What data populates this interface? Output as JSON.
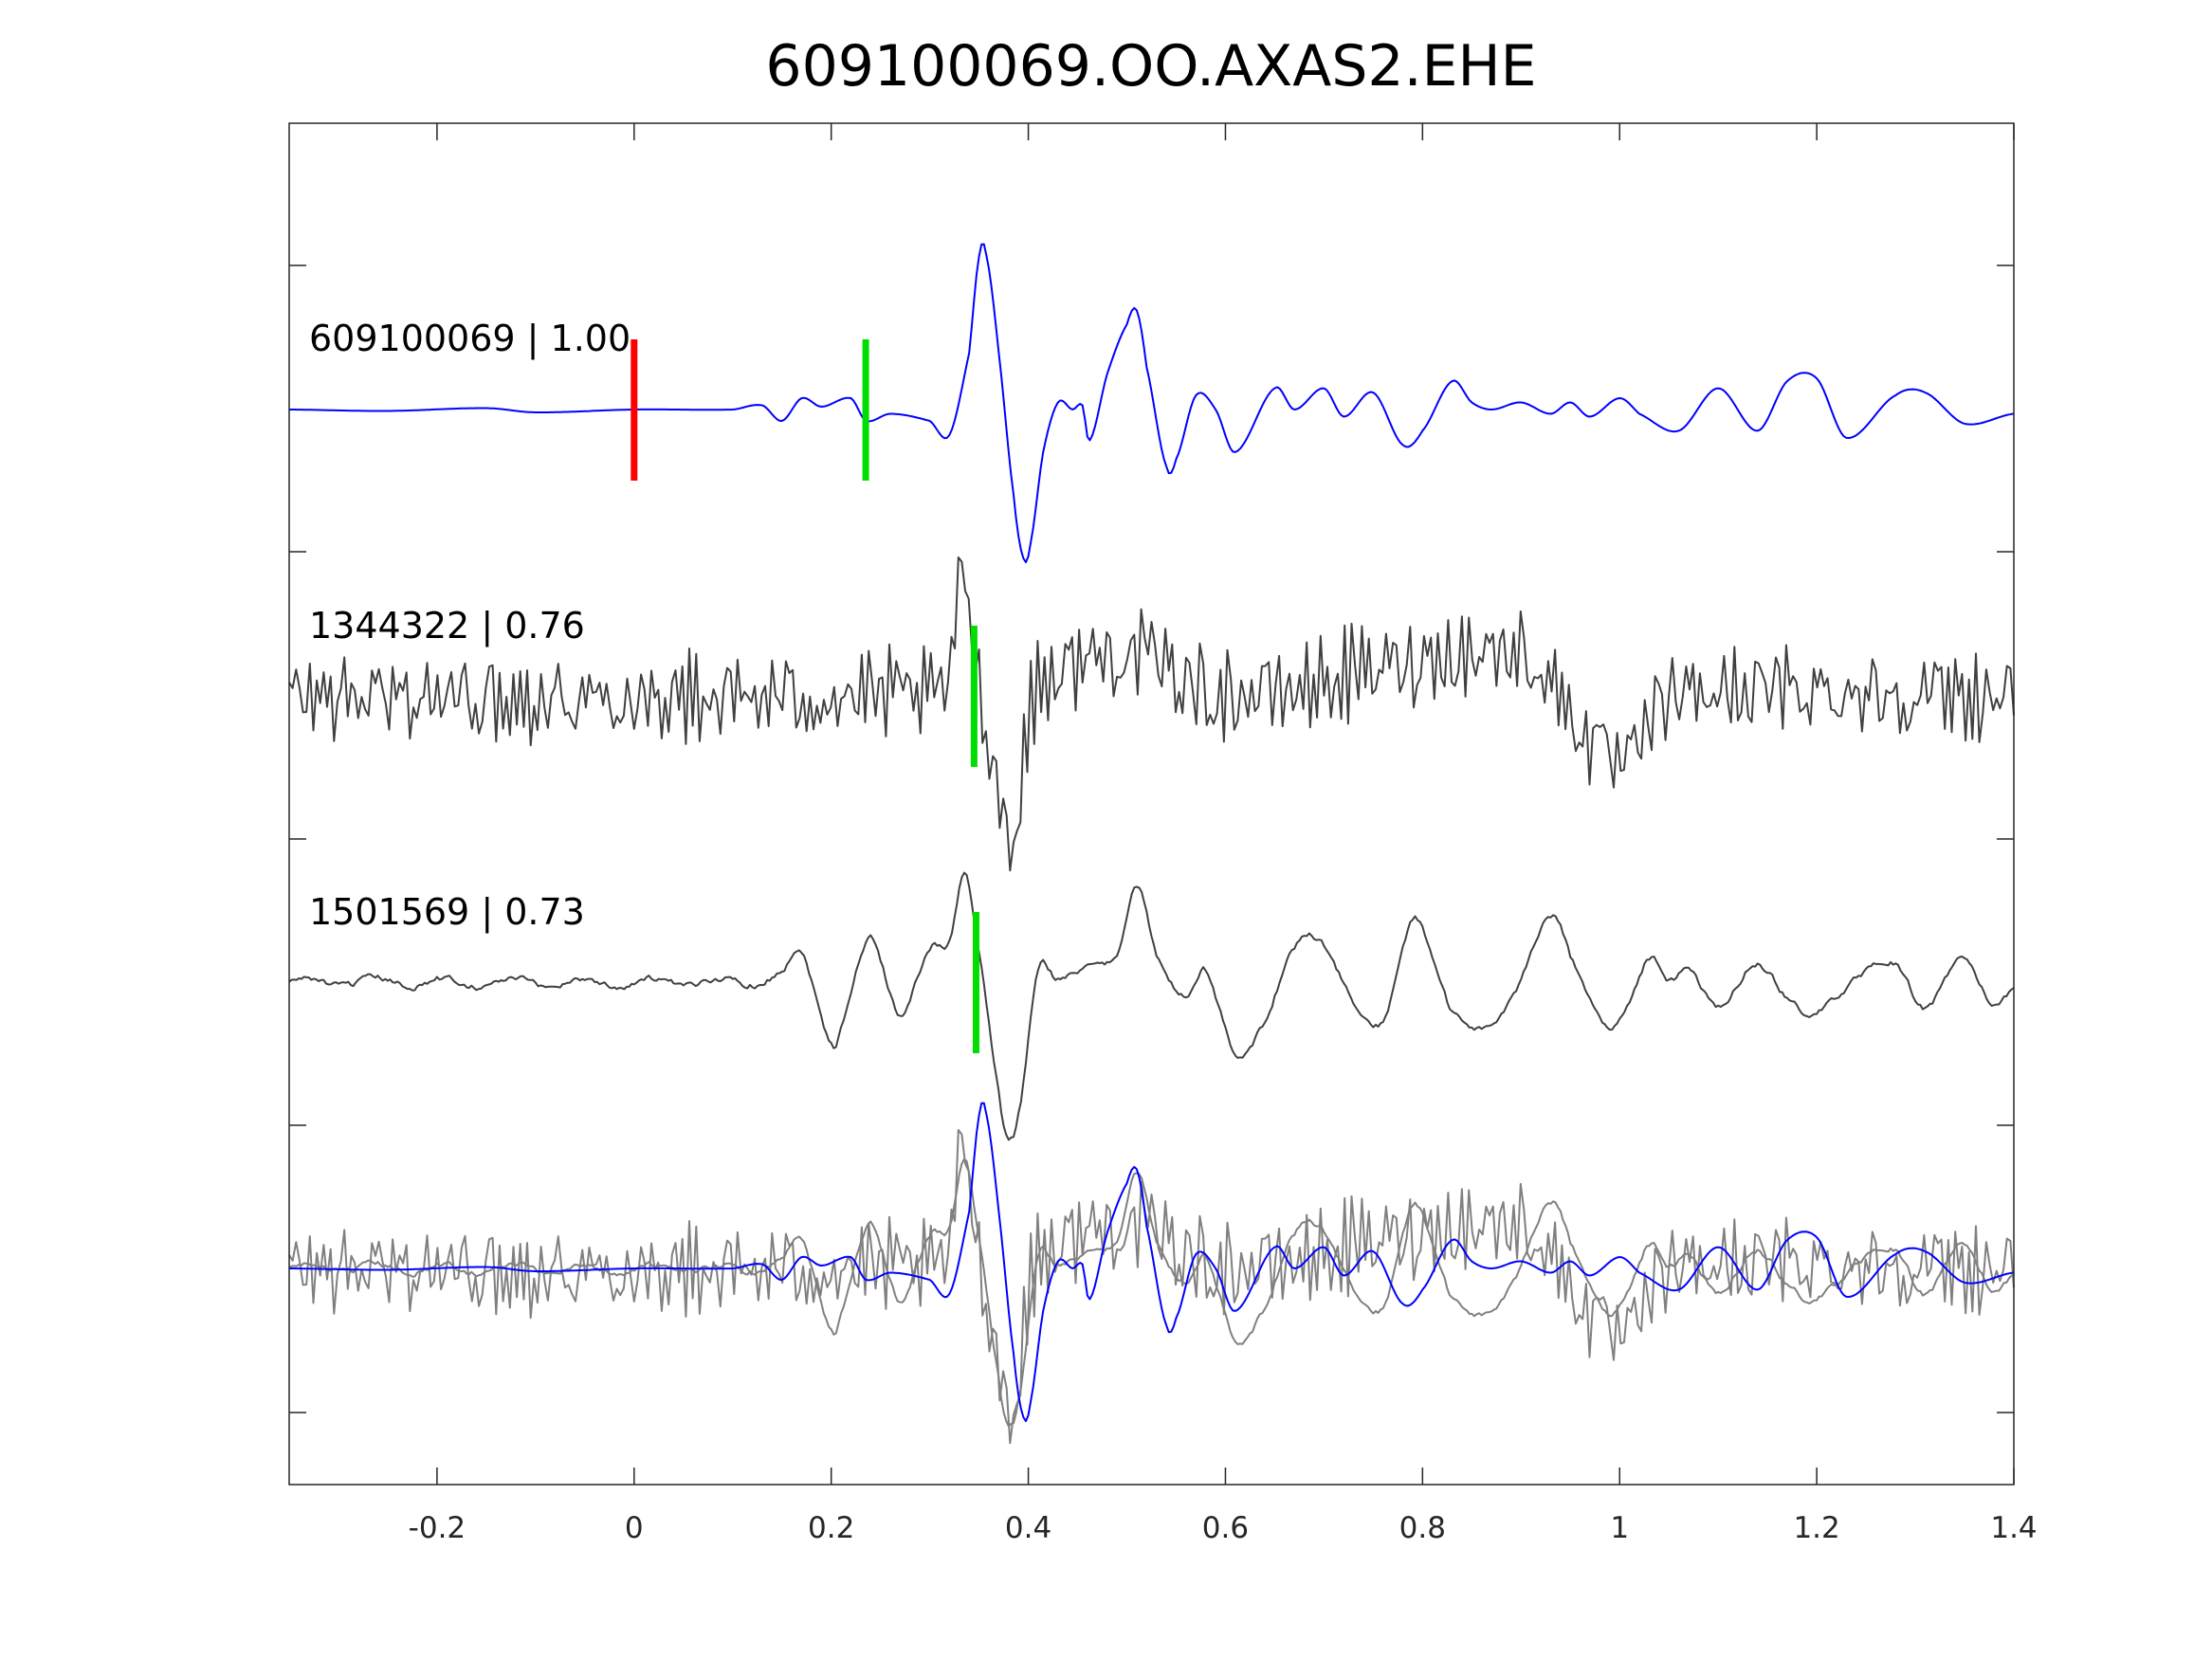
{
  "chart_data": {
    "type": "line",
    "title": "609100069.OO.AXAS2.EHE",
    "xlabel": "",
    "ylabel": "",
    "xlim": [
      -0.35,
      1.4
    ],
    "xticks": [
      -0.2,
      0,
      0.2,
      0.4,
      0.6,
      0.8,
      1,
      1.2,
      1.4
    ],
    "xtick_labels": [
      "-0.2",
      "0",
      "0.2",
      "0.4",
      "0.6",
      "0.8",
      "1",
      "1.2",
      "1.4"
    ],
    "grid": false,
    "colors": {
      "template": "#0000ff",
      "neighbor": "#404040",
      "overlay": "#808080",
      "pick_red": "#ff0000",
      "pick_green": "#00dd00"
    },
    "traces": [
      {
        "name": "609100069",
        "label": "609100069 | 1.00",
        "correlation": 1.0,
        "color": "#0000ff",
        "noise": 0,
        "picks": [
          {
            "t": 0.0,
            "color": "#ff0000"
          },
          {
            "t": 0.235,
            "color": "#00dd00"
          }
        ],
        "key_points": [
          [
            -0.35,
            0
          ],
          [
            -0.25,
            -1
          ],
          [
            -0.15,
            1
          ],
          [
            -0.1,
            -2
          ],
          [
            0,
            0
          ],
          [
            0.1,
            0
          ],
          [
            0.13,
            3
          ],
          [
            0.15,
            -8
          ],
          [
            0.17,
            8
          ],
          [
            0.19,
            2
          ],
          [
            0.22,
            8
          ],
          [
            0.235,
            -8
          ],
          [
            0.26,
            -3
          ],
          [
            0.3,
            -8
          ],
          [
            0.32,
            -18
          ],
          [
            0.34,
            40
          ],
          [
            0.35,
            108
          ],
          [
            0.357,
            110
          ],
          [
            0.37,
            40
          ],
          [
            0.385,
            -60
          ],
          [
            0.395,
            -105
          ],
          [
            0.402,
            -95
          ],
          [
            0.415,
            -30
          ],
          [
            0.43,
            5
          ],
          [
            0.445,
            0
          ],
          [
            0.455,
            3
          ],
          [
            0.462,
            -22
          ],
          [
            0.48,
            25
          ],
          [
            0.5,
            60
          ],
          [
            0.51,
            70
          ],
          [
            0.52,
            30
          ],
          [
            0.54,
            -40
          ],
          [
            0.55,
            -35
          ],
          [
            0.57,
            10
          ],
          [
            0.59,
            0
          ],
          [
            0.61,
            -30
          ],
          [
            0.65,
            15
          ],
          [
            0.67,
            0
          ],
          [
            0.7,
            15
          ],
          [
            0.72,
            -5
          ],
          [
            0.75,
            12
          ],
          [
            0.78,
            -25
          ],
          [
            0.8,
            -15
          ],
          [
            0.83,
            20
          ],
          [
            0.85,
            5
          ],
          [
            0.87,
            0
          ],
          [
            0.9,
            5
          ],
          [
            0.93,
            -3
          ],
          [
            0.95,
            5
          ],
          [
            0.97,
            -5
          ],
          [
            1.0,
            8
          ],
          [
            1.02,
            -3
          ],
          [
            1.06,
            -15
          ],
          [
            1.1,
            15
          ],
          [
            1.14,
            -15
          ],
          [
            1.17,
            20
          ],
          [
            1.2,
            22
          ],
          [
            1.23,
            -20
          ],
          [
            1.28,
            10
          ],
          [
            1.31,
            12
          ],
          [
            1.35,
            -10
          ],
          [
            1.4,
            -3
          ]
        ]
      },
      {
        "name": "1344322",
        "label": "1344322 | 0.76",
        "correlation": 0.76,
        "color": "#404040",
        "noise": 32,
        "picks": [
          {
            "t": 0.345,
            "color": "#00dd00"
          }
        ],
        "key_points": [
          [
            -0.35,
            0
          ],
          [
            0.3,
            0
          ],
          [
            0.32,
            15
          ],
          [
            0.335,
            90
          ],
          [
            0.345,
            30
          ],
          [
            0.36,
            -30
          ],
          [
            0.375,
            -80
          ],
          [
            0.385,
            -110
          ],
          [
            0.395,
            -40
          ],
          [
            0.41,
            10
          ],
          [
            0.5,
            30
          ],
          [
            0.6,
            0
          ],
          [
            0.9,
            30
          ],
          [
            1.0,
            -50
          ],
          [
            1.05,
            0
          ],
          [
            1.4,
            0
          ]
        ]
      },
      {
        "name": "1501569",
        "label": "1501569 | 0.73",
        "correlation": 0.73,
        "color": "#404040",
        "noise": 3,
        "picks": [
          {
            "t": 0.347,
            "color": "#00dd00"
          }
        ],
        "key_points": [
          [
            -0.35,
            0
          ],
          [
            0.1,
            0
          ],
          [
            0.15,
            5
          ],
          [
            0.17,
            20
          ],
          [
            0.2,
            -40
          ],
          [
            0.21,
            -30
          ],
          [
            0.24,
            30
          ],
          [
            0.27,
            -20
          ],
          [
            0.3,
            20
          ],
          [
            0.32,
            30
          ],
          [
            0.335,
            80
          ],
          [
            0.35,
            20
          ],
          [
            0.37,
            -80
          ],
          [
            0.38,
            -110
          ],
          [
            0.39,
            -90
          ],
          [
            0.41,
            10
          ],
          [
            0.43,
            0
          ],
          [
            0.47,
            15
          ],
          [
            0.49,
            20
          ],
          [
            0.51,
            65
          ],
          [
            0.53,
            20
          ],
          [
            0.56,
            -10
          ],
          [
            0.58,
            5
          ],
          [
            0.6,
            -30
          ],
          [
            0.61,
            -50
          ],
          [
            0.64,
            -30
          ],
          [
            0.67,
            25
          ],
          [
            0.69,
            35
          ],
          [
            0.73,
            -15
          ],
          [
            0.76,
            -25
          ],
          [
            0.79,
            40
          ],
          [
            0.81,
            20
          ],
          [
            0.83,
            -20
          ],
          [
            0.86,
            -35
          ],
          [
            0.89,
            -10
          ],
          [
            0.93,
            45
          ],
          [
            0.95,
            20
          ],
          [
            0.98,
            -25
          ],
          [
            1.0,
            -30
          ],
          [
            1.03,
            20
          ],
          [
            1.05,
            0
          ],
          [
            1.07,
            5
          ],
          [
            1.1,
            -15
          ],
          [
            1.14,
            10
          ],
          [
            1.18,
            -15
          ],
          [
            1.2,
            -25
          ],
          [
            1.24,
            5
          ],
          [
            1.28,
            10
          ],
          [
            1.31,
            -15
          ],
          [
            1.35,
            15
          ],
          [
            1.38,
            -15
          ],
          [
            1.4,
            -5
          ]
        ]
      }
    ],
    "overlay_panel": {
      "traces": [
        "1344322",
        "1501569",
        "609100069"
      ]
    }
  }
}
